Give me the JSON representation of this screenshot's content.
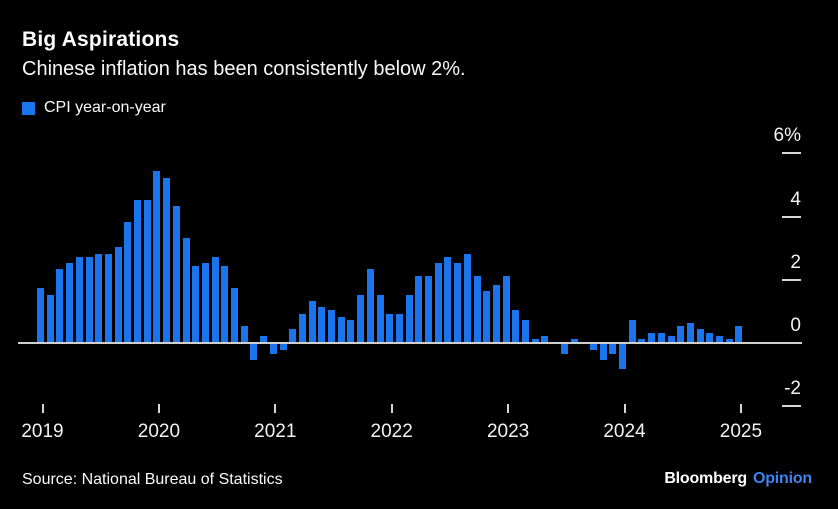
{
  "header": {
    "title": "Big Aspirations",
    "subtitle": "Chinese inflation has been consistently below 2%."
  },
  "legend": {
    "label": "CPI year-on-year",
    "swatch_color": "#1a74ec"
  },
  "chart_data": {
    "type": "bar",
    "title": "Big Aspirations",
    "subtitle": "Chinese inflation has been consistently below 2%.",
    "series_name": "CPI year-on-year",
    "unit": "percent, year-on-year",
    "bar_color": "#1a74ec",
    "grid": false,
    "legend_position": "top-left",
    "axis_side": "right",
    "ylim": [
      -2.6,
      6.5
    ],
    "months": [
      "2019-01",
      "2019-02",
      "2019-03",
      "2019-04",
      "2019-05",
      "2019-06",
      "2019-07",
      "2019-08",
      "2019-09",
      "2019-10",
      "2019-11",
      "2019-12",
      "2020-01",
      "2020-02",
      "2020-03",
      "2020-04",
      "2020-05",
      "2020-06",
      "2020-07",
      "2020-08",
      "2020-09",
      "2020-10",
      "2020-11",
      "2020-12",
      "2021-01",
      "2021-02",
      "2021-03",
      "2021-04",
      "2021-05",
      "2021-06",
      "2021-07",
      "2021-08",
      "2021-09",
      "2021-10",
      "2021-11",
      "2021-12",
      "2022-01",
      "2022-02",
      "2022-03",
      "2022-04",
      "2022-05",
      "2022-06",
      "2022-07",
      "2022-08",
      "2022-09",
      "2022-10",
      "2022-11",
      "2022-12",
      "2023-01",
      "2023-02",
      "2023-03",
      "2023-04",
      "2023-05",
      "2023-06",
      "2023-07",
      "2023-08",
      "2023-09",
      "2023-10",
      "2023-11",
      "2023-12",
      "2024-01",
      "2024-02",
      "2024-03",
      "2024-04",
      "2024-05",
      "2024-06",
      "2024-07",
      "2024-08",
      "2024-09",
      "2024-10",
      "2024-11",
      "2024-12",
      "2025-01"
    ],
    "values": [
      1.7,
      1.5,
      2.3,
      2.5,
      2.7,
      2.7,
      2.8,
      2.8,
      3.0,
      3.8,
      4.5,
      4.5,
      5.4,
      5.2,
      4.3,
      3.3,
      2.4,
      2.5,
      2.7,
      2.4,
      1.7,
      0.5,
      -0.5,
      0.2,
      -0.3,
      -0.2,
      0.4,
      0.9,
      1.3,
      1.1,
      1.0,
      0.8,
      0.7,
      1.5,
      2.3,
      1.5,
      0.9,
      0.9,
      1.5,
      2.1,
      2.1,
      2.5,
      2.7,
      2.5,
      2.8,
      2.1,
      1.6,
      1.8,
      2.1,
      1.0,
      0.7,
      0.1,
      0.2,
      0.0,
      -0.3,
      0.1,
      0.0,
      -0.2,
      -0.5,
      -0.3,
      -0.8,
      0.7,
      0.1,
      0.3,
      0.3,
      0.2,
      0.5,
      0.6,
      0.4,
      0.3,
      0.2,
      0.1,
      0.5
    ],
    "yticks": [
      {
        "label": "6%",
        "value": 6
      },
      {
        "label": "4",
        "value": 4
      },
      {
        "label": "2",
        "value": 2
      },
      {
        "label": "0",
        "value": 0
      },
      {
        "label": "-2",
        "value": -2
      }
    ],
    "xticks": [
      {
        "label": "2019",
        "month_index": 0
      },
      {
        "label": "2020",
        "month_index": 12
      },
      {
        "label": "2021",
        "month_index": 24
      },
      {
        "label": "2022",
        "month_index": 36
      },
      {
        "label": "2023",
        "month_index": 48
      },
      {
        "label": "2024",
        "month_index": 60
      },
      {
        "label": "2025",
        "month_index": 72
      }
    ]
  },
  "footer": {
    "source": "Source: National Bureau of Statistics",
    "brand": "Bloomberg",
    "brand_suffix": "Opinion",
    "brand_suffix_color": "#3f82f0"
  }
}
